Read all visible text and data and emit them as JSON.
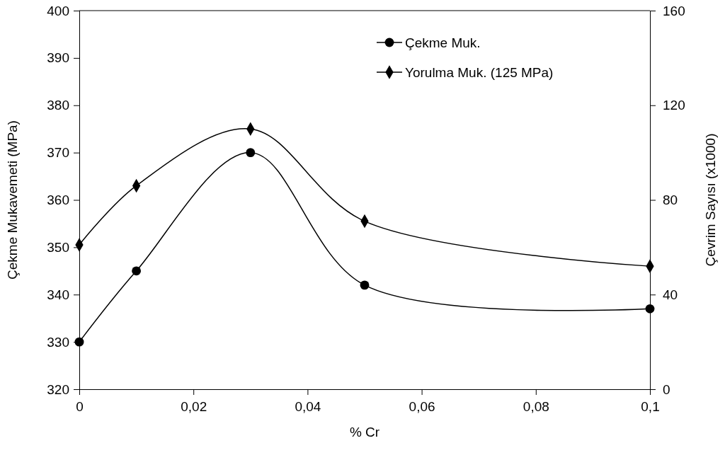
{
  "chart_data": {
    "type": "line",
    "xlabel": "% Cr",
    "ylabel": "Çekme Mukavemeti (MPa)",
    "y2label": "Çevrim Sayısı (x1000)",
    "x": [
      0,
      0.01,
      0.03,
      0.05,
      0.1
    ],
    "xlim": [
      0,
      0.1
    ],
    "xticks": [
      0,
      {
        "value": 0.02,
        "label": "0,02"
      },
      {
        "value": 0.04,
        "label": "0,04"
      },
      {
        "value": 0.06,
        "label": "0,06"
      },
      {
        "value": 0.08,
        "label": "0,08"
      },
      {
        "value": 0.1,
        "label": "0,1"
      }
    ],
    "ylim": [
      320,
      400
    ],
    "yticks": [
      320,
      330,
      340,
      350,
      360,
      370,
      380,
      390,
      400
    ],
    "y2lim": [
      0,
      160
    ],
    "y2ticks": [
      0,
      40,
      80,
      120,
      160
    ],
    "legend": "top right",
    "grid": false,
    "series": [
      {
        "name": "Çekme Muk.",
        "color": "#000000",
        "marker": "circle",
        "values": [
          330,
          345,
          370,
          342,
          337
        ]
      },
      {
        "name": "Yorulma Muk. (125 MPa)",
        "color": "#000000",
        "marker": "diamond",
        "axis": "y2",
        "values": [
          61,
          86,
          110,
          71,
          52
        ]
      }
    ]
  }
}
